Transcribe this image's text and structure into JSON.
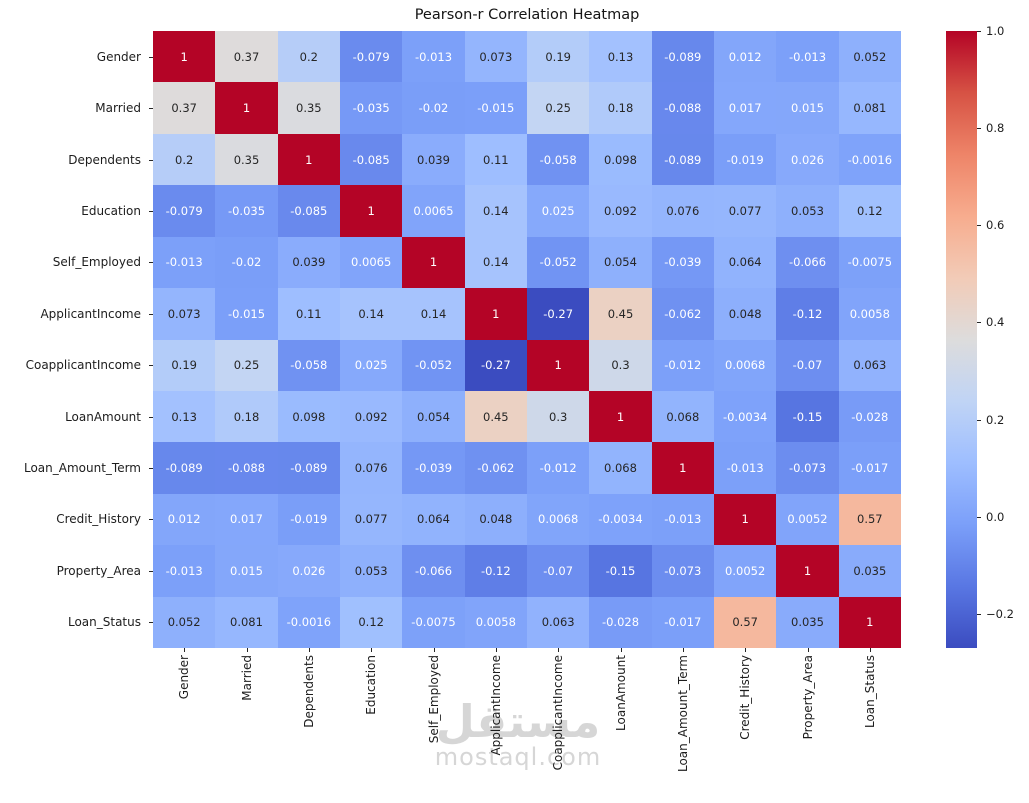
{
  "title": "Pearson-r Correlation Heatmap",
  "watermark": {
    "arabic": "مستقل",
    "latin": "mostaql.com"
  },
  "chart_data": {
    "type": "heatmap",
    "title": "Pearson-r Correlation Heatmap",
    "labels": [
      "Gender",
      "Married",
      "Dependents",
      "Education",
      "Self_Employed",
      "ApplicantIncome",
      "CoapplicantIncome",
      "LoanAmount",
      "Loan_Amount_Term",
      "Credit_History",
      "Property_Area",
      "Loan_Status"
    ],
    "matrix_display": [
      [
        "1",
        "0.37",
        "0.2",
        "-0.079",
        "-0.013",
        "0.073",
        "0.19",
        "0.13",
        "-0.089",
        "0.012",
        "-0.013",
        "0.052"
      ],
      [
        "0.37",
        "1",
        "0.35",
        "-0.035",
        "-0.02",
        "-0.015",
        "0.25",
        "0.18",
        "-0.088",
        "0.017",
        "0.015",
        "0.081"
      ],
      [
        "0.2",
        "0.35",
        "1",
        "-0.085",
        "0.039",
        "0.11",
        "-0.058",
        "0.098",
        "-0.089",
        "-0.019",
        "0.026",
        "-0.0016"
      ],
      [
        "-0.079",
        "-0.035",
        "-0.085",
        "1",
        "0.0065",
        "0.14",
        "0.025",
        "0.092",
        "0.076",
        "0.077",
        "0.053",
        "0.12"
      ],
      [
        "-0.013",
        "-0.02",
        "0.039",
        "0.0065",
        "1",
        "0.14",
        "-0.052",
        "0.054",
        "-0.039",
        "0.064",
        "-0.066",
        "-0.0075"
      ],
      [
        "0.073",
        "-0.015",
        "0.11",
        "0.14",
        "0.14",
        "1",
        "-0.27",
        "0.45",
        "-0.062",
        "0.048",
        "-0.12",
        "0.0058"
      ],
      [
        "0.19",
        "0.25",
        "-0.058",
        "0.025",
        "-0.052",
        "-0.27",
        "1",
        "0.3",
        "-0.012",
        "0.0068",
        "-0.07",
        "0.063"
      ],
      [
        "0.13",
        "0.18",
        "0.098",
        "0.092",
        "0.054",
        "0.45",
        "0.3",
        "1",
        "0.068",
        "-0.0034",
        "-0.15",
        "-0.028"
      ],
      [
        "-0.089",
        "-0.088",
        "-0.089",
        "0.076",
        "-0.039",
        "-0.062",
        "-0.012",
        "0.068",
        "1",
        "-0.013",
        "-0.073",
        "-0.017"
      ],
      [
        "0.012",
        "0.017",
        "-0.019",
        "0.077",
        "0.064",
        "0.048",
        "0.0068",
        "-0.0034",
        "-0.013",
        "1",
        "0.0052",
        "0.57"
      ],
      [
        "-0.013",
        "0.015",
        "0.026",
        "0.053",
        "-0.066",
        "-0.12",
        "-0.07",
        "-0.15",
        "-0.073",
        "0.0052",
        "1",
        "0.035"
      ],
      [
        "0.052",
        "0.081",
        "-0.0016",
        "0.12",
        "-0.0075",
        "0.0058",
        "0.063",
        "-0.028",
        "-0.017",
        "0.57",
        "0.035",
        "1"
      ]
    ],
    "vmin": -0.27,
    "vmax": 1.0,
    "colormap": "coolwarm",
    "colormap_anchors": [
      "#3b4cc0",
      "#5977e3",
      "#7b9ff9",
      "#9ebeff",
      "#c0d4f5",
      "#dddcdc",
      "#f2cbb7",
      "#f7ac8e",
      "#ee8468",
      "#d65244",
      "#b40426"
    ],
    "annotation_text_dark": "#262626",
    "annotation_text_light": "#ffffff",
    "colorbar_ticks": [
      {
        "label": "1.0",
        "value": 1.0
      },
      {
        "label": "0.8",
        "value": 0.8
      },
      {
        "label": "0.6",
        "value": 0.6
      },
      {
        "label": "0.4",
        "value": 0.4
      },
      {
        "label": "0.2",
        "value": 0.2
      },
      {
        "label": "0.0",
        "value": 0.0
      },
      {
        "label": "−0.2",
        "value": -0.2
      }
    ],
    "legend_position": "right",
    "grid": false
  }
}
